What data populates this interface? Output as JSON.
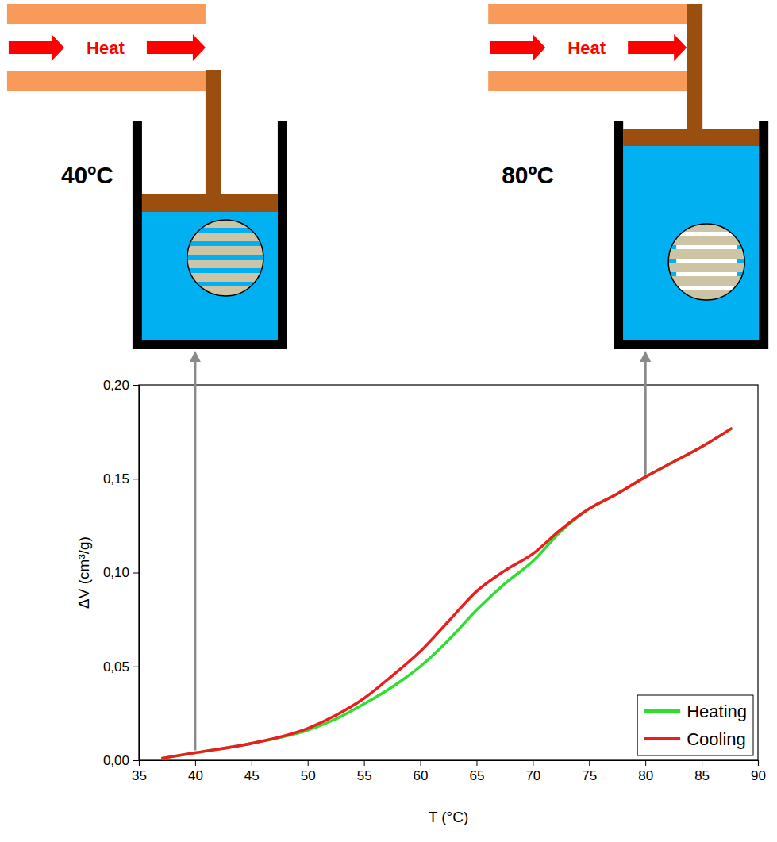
{
  "chart_data": {
    "type": "line",
    "x_label": "T (°C)",
    "y_label": "ΔV (cm³/g)",
    "x": [
      37,
      40,
      45,
      50,
      52.5,
      55,
      57.5,
      60,
      62.5,
      65,
      67.5,
      70,
      72.5,
      75,
      77.5,
      80,
      82.5,
      85,
      87.7
    ],
    "series": [
      {
        "name": "Heating",
        "color": "#2ee02e",
        "values": [
          0.001,
          0.004,
          0.009,
          0.016,
          0.022,
          0.03,
          0.039,
          0.05,
          0.064,
          0.08,
          0.094,
          0.106,
          0.122,
          0.134,
          0.142,
          0.151,
          0.159,
          0.167,
          0.177
        ]
      },
      {
        "name": "Cooling",
        "color": "#ee1c1c",
        "values": [
          0.001,
          0.004,
          0.009,
          0.017,
          0.024,
          0.033,
          0.045,
          0.058,
          0.074,
          0.09,
          0.101,
          0.11,
          0.123,
          0.134,
          0.142,
          0.151,
          0.159,
          0.167,
          0.177
        ]
      }
    ],
    "xlim": [
      35,
      90
    ],
    "ylim": [
      0,
      0.2
    ],
    "xticks": [
      35,
      40,
      45,
      50,
      55,
      60,
      65,
      70,
      75,
      80,
      85,
      90
    ],
    "yticks": [
      {
        "value": 0,
        "label": "0,00"
      },
      {
        "value": 0.05,
        "label": "0,05"
      },
      {
        "value": 0.1,
        "label": "0,10"
      },
      {
        "value": 0.15,
        "label": "0,15"
      },
      {
        "value": 0.2,
        "label": "0,20"
      }
    ],
    "grid": false,
    "legend": "lower right",
    "annotations": [
      {
        "text": "40ºC",
        "heat_label": "Heat",
        "x": 40,
        "y": 0.004
      },
      {
        "text": "80ºC",
        "heat_label": "Heat",
        "x": 80,
        "y": 0.151
      }
    ]
  }
}
